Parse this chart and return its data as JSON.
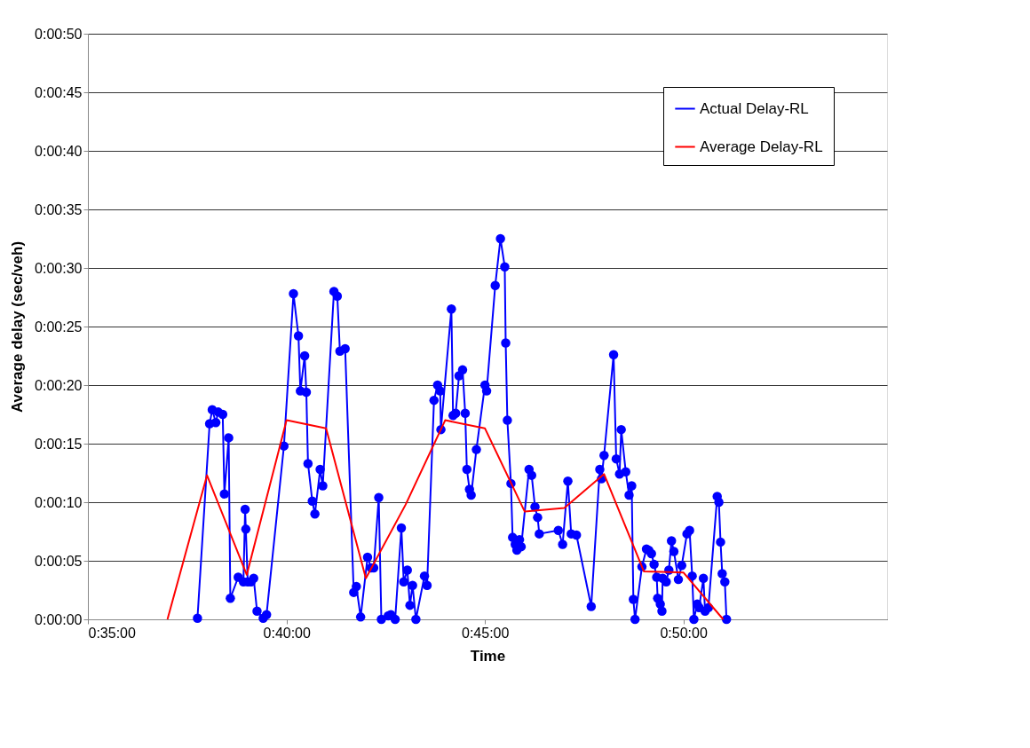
{
  "chart_data": {
    "type": "line",
    "xlabel": "Time",
    "ylabel": "Average delay (sec/veh)",
    "xlim": [
      0.5833,
      0.9188
    ],
    "xticks": [
      {
        "value": 0.5833,
        "label": "0:35:00"
      },
      {
        "value": 0.6667,
        "label": "0:40:00"
      },
      {
        "value": 0.75,
        "label": "0:45:00"
      },
      {
        "value": 0.8333,
        "label": "0:50:00"
      }
    ],
    "ylim": [
      0,
      50
    ],
    "yticks": [
      {
        "value": 0,
        "label": "0:00:00"
      },
      {
        "value": 5,
        "label": "0:00:05"
      },
      {
        "value": 10,
        "label": "0:00:10"
      },
      {
        "value": 15,
        "label": "0:00:15"
      },
      {
        "value": 20,
        "label": "0:00:20"
      },
      {
        "value": 25,
        "label": "0:00:25"
      },
      {
        "value": 30,
        "label": "0:00:30"
      },
      {
        "value": 35,
        "label": "0:00:35"
      },
      {
        "value": 40,
        "label": "0:00:40"
      },
      {
        "value": 45,
        "label": "0:00:45"
      },
      {
        "value": 50,
        "label": "0:00:50"
      }
    ],
    "grid": "y",
    "legend": "top right",
    "series": [
      {
        "name": "Actual Delay-RL",
        "color": "#0000ff",
        "marker": "circle",
        "line_style": "solid",
        "x": [
          0.6293,
          0.6344,
          0.6355,
          0.637,
          0.638,
          0.6399,
          0.6406,
          0.6424,
          0.6431,
          0.6464,
          0.6486,
          0.6493,
          0.6496,
          0.6504,
          0.6518,
          0.6529,
          0.6543,
          0.6569,
          0.6583,
          0.6656,
          0.6696,
          0.6717,
          0.6725,
          0.6743,
          0.675,
          0.6757,
          0.6775,
          0.6786,
          0.6808,
          0.6819,
          0.6866,
          0.688,
          0.6891,
          0.6913,
          0.6949,
          0.696,
          0.6978,
          0.7007,
          0.7022,
          0.7033,
          0.7054,
          0.7065,
          0.7094,
          0.7105,
          0.7123,
          0.7149,
          0.7159,
          0.7174,
          0.7185,
          0.7196,
          0.721,
          0.7246,
          0.7257,
          0.7286,
          0.7301,
          0.7312,
          0.7315,
          0.7359,
          0.7366,
          0.7377,
          0.7391,
          0.7406,
          0.7417,
          0.7424,
          0.7435,
          0.7442,
          0.7464,
          0.75,
          0.7507,
          0.7543,
          0.7565,
          0.7583,
          0.7587,
          0.7594,
          0.7609,
          0.7616,
          0.7627,
          0.7634,
          0.7645,
          0.7652,
          0.7685,
          0.7696,
          0.771,
          0.7721,
          0.7728,
          0.7808,
          0.7826,
          0.7848,
          0.7862,
          0.7884,
          0.7946,
          0.7982,
          0.7989,
          0.8,
          0.804,
          0.8051,
          0.8065,
          0.8072,
          0.8091,
          0.8105,
          0.8116,
          0.8123,
          0.813,
          0.8159,
          0.8178,
          0.8188,
          0.8199,
          0.821,
          0.8221,
          0.8225,
          0.8236,
          0.8243,
          0.8246,
          0.8261,
          0.8272,
          0.8283,
          0.8293,
          0.8312,
          0.8326,
          0.8348,
          0.8359,
          0.837,
          0.8377,
          0.8391,
          0.8399,
          0.8417,
          0.8424,
          0.8438,
          0.8475,
          0.8482,
          0.8489,
          0.8496,
          0.8507,
          0.8514
        ],
        "values": [
          0.1,
          16.7,
          17.9,
          16.8,
          17.7,
          17.5,
          10.7,
          15.5,
          1.8,
          3.6,
          3.2,
          9.4,
          7.7,
          3.2,
          3.2,
          3.5,
          0.7,
          0.1,
          0.4,
          14.8,
          27.8,
          24.2,
          19.5,
          22.5,
          19.4,
          13.3,
          10.1,
          9.0,
          12.8,
          11.4,
          28.0,
          27.6,
          22.9,
          23.1,
          2.3,
          2.8,
          0.2,
          5.3,
          4.4,
          4.4,
          10.4,
          0.0,
          0.3,
          0.4,
          0.0,
          7.8,
          3.2,
          4.2,
          1.2,
          2.9,
          0.0,
          3.7,
          2.9,
          18.7,
          20.0,
          19.5,
          16.2,
          26.5,
          17.4,
          17.6,
          20.8,
          21.3,
          17.6,
          12.8,
          11.1,
          10.6,
          14.5,
          20.0,
          19.5,
          28.5,
          32.5,
          30.1,
          23.6,
          17.0,
          11.6,
          7.0,
          6.4,
          5.9,
          6.8,
          6.2,
          12.8,
          12.3,
          9.6,
          8.7,
          7.3,
          7.6,
          6.4,
          11.8,
          7.3,
          7.2,
          1.1,
          12.8,
          12.0,
          14.0,
          22.6,
          13.7,
          12.4,
          16.2,
          12.6,
          10.6,
          11.4,
          1.7,
          0.0,
          4.5,
          6.0,
          5.9,
          5.6,
          4.7,
          3.6,
          1.8,
          1.3,
          0.7,
          3.5,
          3.2,
          4.2,
          6.7,
          5.8,
          3.4,
          4.6,
          7.3,
          7.6,
          3.7,
          0.0,
          1.3,
          1.0,
          3.5,
          0.7,
          1.0,
          10.5,
          10.0,
          6.6,
          3.9,
          3.2,
          0.0
        ]
      },
      {
        "name": "Average Delay-RL",
        "color": "#ff0000",
        "marker": "none",
        "line_style": "solid",
        "x": [
          0.6167,
          0.6333,
          0.65,
          0.6667,
          0.6833,
          0.7,
          0.7167,
          0.7333,
          0.75,
          0.7667,
          0.7833,
          0.8,
          0.8167,
          0.8333,
          0.85
        ],
        "values": [
          0.0,
          12.3,
          3.8,
          17.0,
          16.3,
          3.5,
          9.8,
          17.0,
          16.3,
          9.2,
          9.5,
          12.4,
          4.1,
          4.0,
          0.0
        ]
      }
    ]
  }
}
